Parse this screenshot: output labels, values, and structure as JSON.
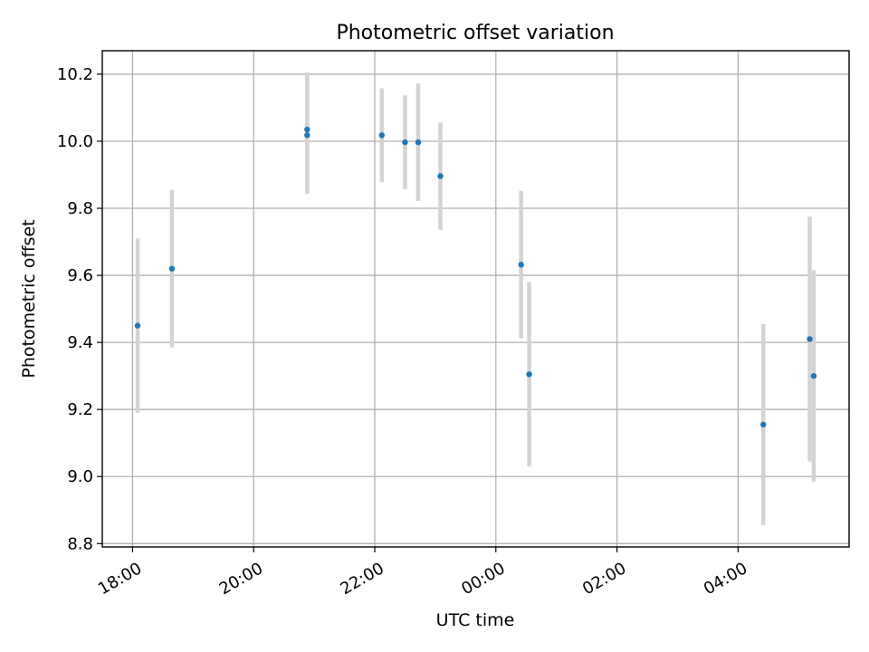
{
  "chart_data": {
    "type": "scatter",
    "title": "Photometric offset variation",
    "xlabel": "UTC time",
    "ylabel": "Photometric offset",
    "grid": true,
    "x_axis": {
      "type": "time",
      "range": [
        "2023-01-01T17:30",
        "2023-01-02T05:50"
      ],
      "ticks": [
        {
          "value": "2023-01-01T18:00",
          "label": "18:00"
        },
        {
          "value": "2023-01-01T20:00",
          "label": "20:00"
        },
        {
          "value": "2023-01-01T22:00",
          "label": "22:00"
        },
        {
          "value": "2023-01-02T00:00",
          "label": "00:00"
        },
        {
          "value": "2023-01-02T02:00",
          "label": "02:00"
        },
        {
          "value": "2023-01-02T04:00",
          "label": "04:00"
        }
      ]
    },
    "y_axis": {
      "range": [
        8.79,
        10.27
      ],
      "ticks": [
        8.8,
        9.0,
        9.2,
        9.4,
        9.6,
        9.8,
        10.0,
        10.2
      ],
      "tick_labels": [
        "8.8",
        "9.0",
        "9.2",
        "9.4",
        "9.6",
        "9.8",
        "10.0",
        "10.2"
      ]
    },
    "series": [
      {
        "marker_color": "#1f77b4",
        "errorbar_color": "#d3d3d3",
        "points": [
          {
            "x": "2023-01-01T18:05",
            "y": 9.45,
            "err": 0.26
          },
          {
            "x": "2023-01-01T18:39",
            "y": 9.62,
            "err": 0.235
          },
          {
            "x": "2023-01-01T20:53",
            "y": 10.035,
            "err": 0.17
          },
          {
            "x": "2023-01-01T20:53",
            "y": 10.018,
            "err": 0.175
          },
          {
            "x": "2023-01-01T22:07",
            "y": 10.018,
            "err": 0.14
          },
          {
            "x": "2023-01-01T22:30",
            "y": 9.997,
            "err": 0.14
          },
          {
            "x": "2023-01-01T22:43",
            "y": 9.997,
            "err": 0.175
          },
          {
            "x": "2023-01-01T23:05",
            "y": 9.896,
            "err": 0.16
          },
          {
            "x": "2023-01-02T00:25",
            "y": 9.632,
            "err": 0.22
          },
          {
            "x": "2023-01-02T00:33",
            "y": 9.305,
            "err": 0.275
          },
          {
            "x": "2023-01-02T04:25",
            "y": 9.155,
            "err": 0.3
          },
          {
            "x": "2023-01-02T05:11",
            "y": 9.41,
            "err": 0.365
          },
          {
            "x": "2023-01-02T05:15",
            "y": 9.3,
            "err": 0.315
          }
        ]
      }
    ]
  }
}
